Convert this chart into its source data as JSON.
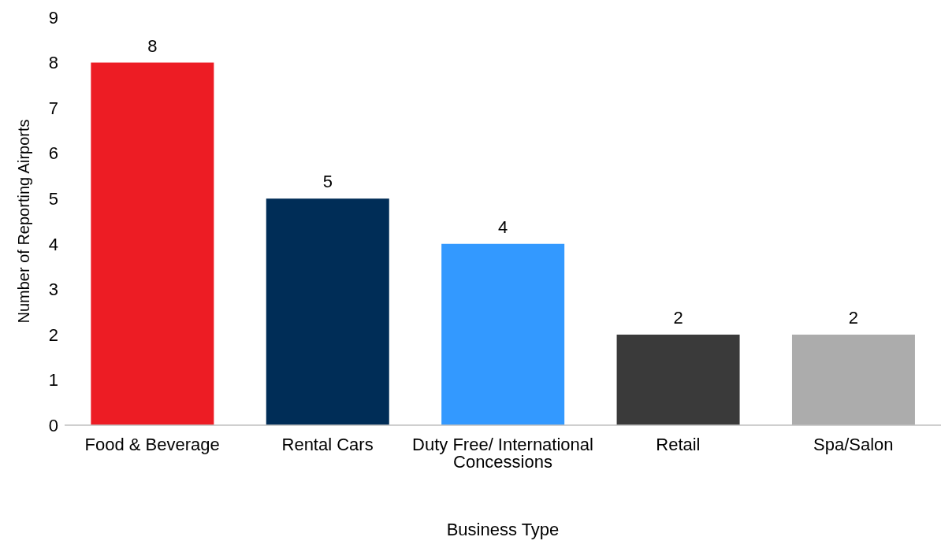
{
  "chart_data": {
    "type": "bar",
    "xlabel": "Business Type",
    "ylabel": "Number of Reporting Airports",
    "categories": [
      "Food & Beverage",
      "Rental Cars",
      "Duty Free/ International Concessions",
      "Retail",
      "Spa/Salon"
    ],
    "values": [
      8,
      5,
      4,
      2,
      2
    ],
    "colors": [
      "#ed1c24",
      "#002d57",
      "#3399ff",
      "#3a3a3a",
      "#acacac"
    ],
    "ylim": [
      0,
      9
    ],
    "yticks": [
      0,
      1,
      2,
      3,
      4,
      5,
      6,
      7,
      8,
      9
    ],
    "grid": false,
    "legend": false,
    "data_labels": true
  }
}
